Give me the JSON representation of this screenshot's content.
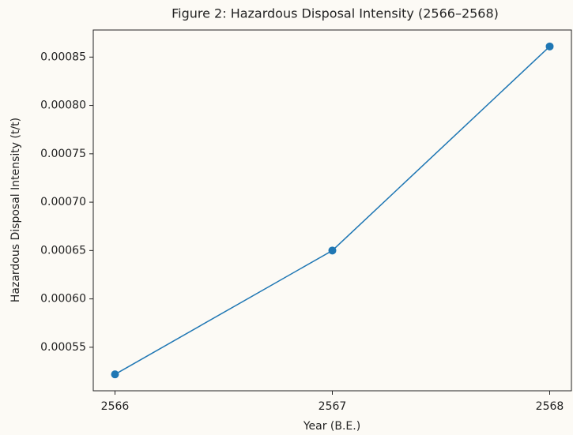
{
  "chart_data": {
    "type": "line",
    "title": "Figure 2: Hazardous Disposal Intensity (2566–2568)",
    "x_label": "Year (B.E.)",
    "y_label": "Hazardous Disposal Intensity (t/t)",
    "x": [
      2566,
      2567,
      2568
    ],
    "series": [
      {
        "name": "Hazardous Disposal Intensity",
        "color": "#1f77b4",
        "values": [
          0.000522,
          0.00065,
          0.000861
        ]
      }
    ],
    "xlim": [
      2565.9,
      2568.1
    ],
    "xticks": [
      2566,
      2567,
      2568
    ],
    "ylim": [
      0.000505,
      0.000878
    ],
    "yticks": [
      0.00055,
      {
        "value": 0.0006,
        "label": "0.00060"
      },
      0.00065,
      {
        "value": 0.0007,
        "label": "0.00070"
      },
      0.00075,
      {
        "value": 0.0008,
        "label": "0.00080"
      },
      0.00085
    ],
    "grid": false
  }
}
